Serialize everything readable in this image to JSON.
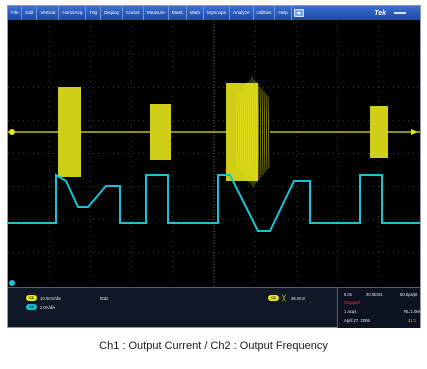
{
  "menu": {
    "items": [
      "File",
      "Edit",
      "Vertical",
      "Horiz/Acq",
      "Trig",
      "Display",
      "Cursor",
      "Measure",
      "Mask",
      "Math",
      "MyScope",
      "Analyze",
      "Utilities",
      "Help"
    ],
    "brand": "Tek"
  },
  "channels": {
    "ch1": {
      "badge": "C1",
      "scale": "10.0mV/div",
      "coupling": "50Ω",
      "color": "#e6e61a"
    },
    "ch2": {
      "badge": "C2",
      "scale": "2.0A/div",
      "color": "#19c3d6"
    }
  },
  "trigger": {
    "badge": "C1",
    "symbol": "╳",
    "level": "36.0mV",
    "color": "#e6e61a"
  },
  "timebase": {
    "scale": "5.0s",
    "sample_rate": "20.0kS/s",
    "points": "50.0µs/pt",
    "state": "Stopped",
    "acqs": "1 acqs",
    "record_length": "RL:1.0M",
    "date": "April 27, 2006",
    "time": "21:1"
  },
  "caption": "Ch1 : Output Current / Ch2 : Output Frequency",
  "colors": {
    "ch1": "#e6e61a",
    "ch2": "#19c3d6",
    "grid": "#6a6a6a"
  }
}
